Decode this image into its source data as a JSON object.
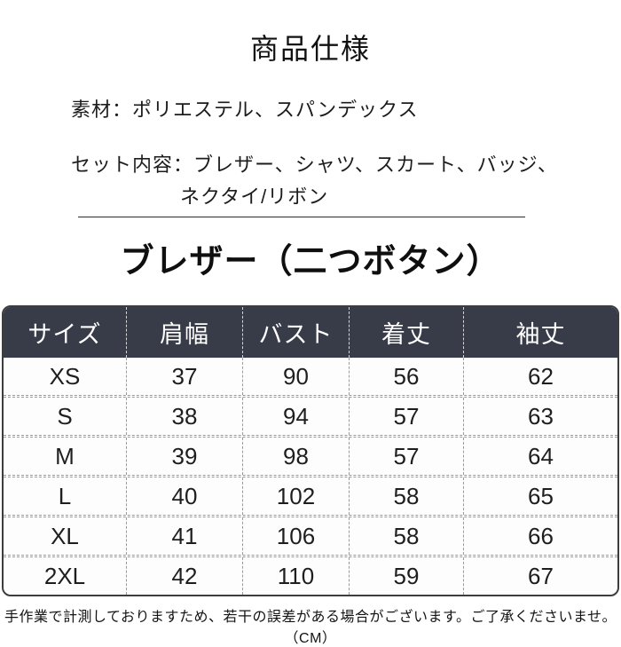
{
  "page": {
    "title": "商品仕様",
    "material_line": "素材：ポリエステル、スパンデックス",
    "set_line_1": "セット内容：ブレザー、シャツ、スカート、バッジ、",
    "set_line_2": "ネクタイ/リボン",
    "section_heading": "ブレザー（二つボタン）",
    "footer_note": "手作業で計測しておりますため、若干の誤差がある場合がございます。ご了承くださいませ。（CM）"
  },
  "size_table": {
    "unit": "CM",
    "columns": [
      "サイズ",
      "肩幅",
      "バスト",
      "着丈",
      "袖丈"
    ],
    "rows": [
      {
        "size": "XS",
        "shoulder": "37",
        "bust": "90",
        "length": "56",
        "sleeve": "62"
      },
      {
        "size": "S",
        "shoulder": "38",
        "bust": "94",
        "length": "57",
        "sleeve": "63"
      },
      {
        "size": "M",
        "shoulder": "39",
        "bust": "98",
        "length": "57",
        "sleeve": "64"
      },
      {
        "size": "L",
        "shoulder": "40",
        "bust": "102",
        "length": "58",
        "sleeve": "65"
      },
      {
        "size": "XL",
        "shoulder": "41",
        "bust": "106",
        "length": "58",
        "sleeve": "66"
      },
      {
        "size": "2XL",
        "shoulder": "42",
        "bust": "110",
        "length": "59",
        "sleeve": "67"
      }
    ]
  },
  "colors": {
    "header_bg": "#383b48",
    "header_text": "#ffffff",
    "body_text": "#1f1f1f",
    "dashed_border": "#9a9a9a",
    "outer_border": "#3d3d3d",
    "page_bg": "#ffffff"
  }
}
